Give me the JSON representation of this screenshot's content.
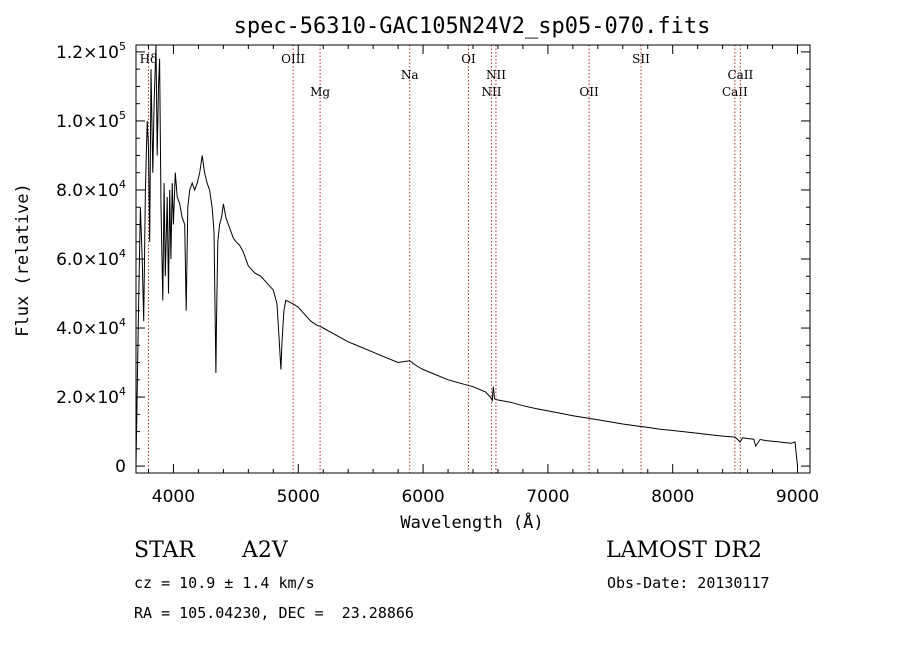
{
  "chart_data": {
    "type": "line",
    "title": "spec-56310-GAC105N24V2_sp05-070.fits",
    "xlabel": "Wavelength (Å)",
    "ylabel": "Flux (relative)",
    "xlim": [
      3700,
      9100
    ],
    "ylim": [
      -2000,
      122000
    ],
    "x_ticks": [
      4000,
      5000,
      6000,
      7000,
      8000,
      9000
    ],
    "y_ticks": [
      {
        "value": 0,
        "mantissa": "0",
        "exp": ""
      },
      {
        "value": 20000,
        "mantissa": "2.0×10",
        "exp": "4"
      },
      {
        "value": 40000,
        "mantissa": "4.0×10",
        "exp": "4"
      },
      {
        "value": 60000,
        "mantissa": "6.0×10",
        "exp": "4"
      },
      {
        "value": 80000,
        "mantissa": "8.0×10",
        "exp": "4"
      },
      {
        "value": 100000,
        "mantissa": "1.0×10",
        "exp": "5"
      },
      {
        "value": 120000,
        "mantissa": "1.2×10",
        "exp": "5"
      }
    ],
    "spectral_lines": [
      {
        "label": "Hδ",
        "wavelength": 3800,
        "row": "high"
      },
      {
        "label": "OIII",
        "wavelength": 4959,
        "row": "high"
      },
      {
        "label": "Mg",
        "wavelength": 5175,
        "row": "low"
      },
      {
        "label": "Na",
        "wavelength": 5893,
        "row": "mid"
      },
      {
        "label": "OI",
        "wavelength": 6364,
        "row": "high"
      },
      {
        "label": "NII",
        "wavelength": 6548,
        "row": "low"
      },
      {
        "label": "NII",
        "wavelength": 6584,
        "row": "mid"
      },
      {
        "label": "OII",
        "wavelength": 7330,
        "row": "low"
      },
      {
        "label": "SII",
        "wavelength": 7746,
        "row": "high"
      },
      {
        "label": "CaII",
        "wavelength": 8498,
        "row": "low"
      },
      {
        "label": "CaII",
        "wavelength": 8542,
        "row": "mid"
      }
    ],
    "series": [
      {
        "x": [
          3700,
          3720,
          3735,
          3750,
          3762,
          3775,
          3790,
          3800,
          3810,
          3820,
          3835,
          3845,
          3860,
          3870,
          3880,
          3889,
          3900,
          3915,
          3925,
          3935,
          3950,
          3960,
          3970,
          3980,
          3990,
          4000,
          4015,
          4030,
          4050,
          4070,
          4090,
          4102,
          4115,
          4130,
          4150,
          4170,
          4190,
          4210,
          4230,
          4250,
          4270,
          4290,
          4310,
          4325,
          4335,
          4340,
          4345,
          4355,
          4370,
          4385,
          4400,
          4420,
          4440,
          4460,
          4480,
          4500,
          4530,
          4560,
          4600,
          4650,
          4700,
          4750,
          4800,
          4830,
          4850,
          4861,
          4870,
          4885,
          4900,
          4930,
          4960,
          5000,
          5050,
          5100,
          5150,
          5175,
          5200,
          5300,
          5400,
          5500,
          5600,
          5700,
          5800,
          5893,
          5950,
          6000,
          6100,
          6200,
          6300,
          6400,
          6500,
          6540,
          6555,
          6563,
          6572,
          6590,
          6700,
          6800,
          6900,
          7000,
          7100,
          7200,
          7300,
          7400,
          7500,
          7600,
          7700,
          7800,
          7900,
          8000,
          8100,
          8200,
          8300,
          8400,
          8500,
          8540,
          8560,
          8600,
          8650,
          8665,
          8700,
          8750,
          8800,
          8850,
          8900,
          8950,
          8980,
          9000
        ],
        "y": [
          0,
          45000,
          75000,
          60000,
          42000,
          80000,
          100000,
          92000,
          65000,
          115000,
          85000,
          105000,
          122000,
          90000,
          110000,
          118000,
          75000,
          48000,
          82000,
          55000,
          78000,
          50000,
          80000,
          60000,
          82000,
          70000,
          85000,
          78000,
          76000,
          72000,
          70000,
          45000,
          75000,
          80000,
          82000,
          80000,
          82000,
          85000,
          90000,
          85000,
          82000,
          80000,
          75000,
          68000,
          40000,
          27000,
          42000,
          65000,
          70000,
          72000,
          76000,
          72000,
          70000,
          68000,
          66000,
          65000,
          64000,
          62000,
          58000,
          56000,
          55000,
          53000,
          51000,
          47000,
          35000,
          28000,
          36000,
          45000,
          48000,
          47500,
          47000,
          46000,
          44000,
          42000,
          40800,
          40500,
          40000,
          38000,
          36000,
          34500,
          33000,
          31500,
          30000,
          30500,
          29000,
          28000,
          26500,
          25000,
          24000,
          23000,
          21500,
          20000,
          19000,
          23000,
          19500,
          19200,
          18500,
          17500,
          16700,
          16000,
          15300,
          14600,
          14000,
          13400,
          12800,
          12200,
          11700,
          11200,
          10700,
          10300,
          9900,
          9500,
          9100,
          8700,
          8400,
          7000,
          8200,
          8000,
          7800,
          5800,
          7700,
          7400,
          7200,
          7000,
          6800,
          6600,
          7000,
          0
        ]
      }
    ]
  },
  "info": {
    "object_type": "STAR",
    "subclass": "A2V",
    "survey": "LAMOST DR2",
    "cz": "cz = 10.9 ± 1.4 km/s",
    "obs_date": "Obs-Date: 20130117",
    "coords": "RA = 105.04230, DEC =  23.28866"
  }
}
